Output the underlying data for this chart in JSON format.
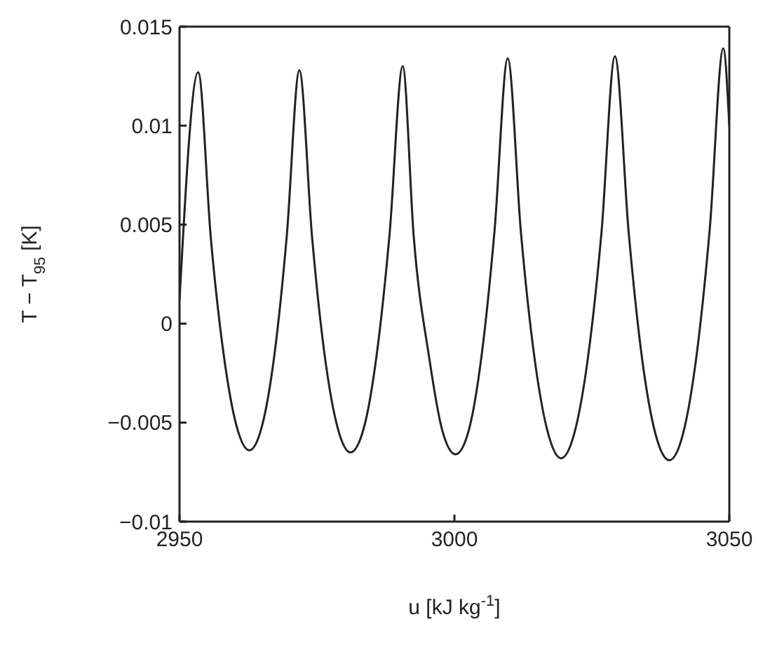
{
  "chart_data": {
    "type": "line",
    "xlabel": "u [kJ kg$^{-1}$]",
    "ylabel": "T − T$_{95}$ [K]",
    "x": [
      2950,
      2953.4,
      2955.7,
      2958.05,
      2960.4,
      2962.7,
      2964.98,
      2967.25,
      2969.5,
      2971.8,
      2974.1,
      2976.45,
      2978.8,
      2981.1,
      2983.5,
      2985.85,
      2988.2,
      2990.6,
      2992.6,
      2995.4,
      2997.8,
      3000.2,
      3002.6,
      3004.95,
      3007.3,
      3009.7,
      3012.1,
      3014.55,
      3017.0,
      3019.4,
      3021.85,
      3024.3,
      3026.75,
      3029.2,
      3031.7,
      3034.15,
      3036.6,
      3039.1,
      3041.55,
      3044.0,
      3046.45,
      3048.9,
      3050
    ],
    "series": [
      {
        "color": "#222222",
        "values": [
          0.0012,
          0.0127,
          0.0043,
          -0.0016,
          -0.0052,
          -0.0064,
          -0.0052,
          -0.0016,
          0.0044,
          0.0128,
          0.0044,
          -0.0017,
          -0.0053,
          -0.0065,
          -0.0053,
          -0.0016,
          0.0045,
          0.013,
          0.0044,
          -0.0017,
          -0.0054,
          -0.0066,
          -0.0054,
          -0.0016,
          0.0047,
          0.0134,
          0.0046,
          -0.0017,
          -0.0055,
          -0.0068,
          -0.0055,
          -0.0017,
          0.0046,
          0.0135,
          0.0046,
          -0.0018,
          -0.0056,
          -0.0069,
          -0.0056,
          -0.0017,
          0.0048,
          0.0139,
          0.01
        ]
      }
    ],
    "xlim": [
      2950,
      3050
    ],
    "xticks": [
      2950,
      3000,
      3050
    ],
    "ylim": [
      -0.01,
      0.015
    ],
    "yticks": [
      {
        "value": -0.01,
        "label": "−0.01"
      },
      {
        "value": -0.005,
        "label": "−0.005"
      },
      0,
      0.005,
      0.01,
      0.015
    ],
    "grid": false,
    "legend": false,
    "marker": "none",
    "line_style": "solid"
  }
}
